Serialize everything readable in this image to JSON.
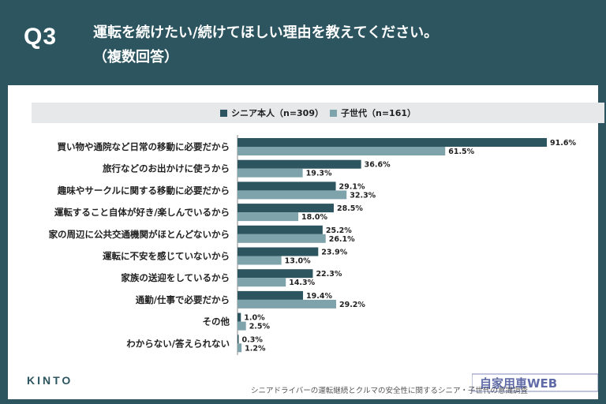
{
  "header": {
    "q_label": "Q3",
    "title_line1": "運転を続けたい/続けてほしい理由を教えてください。",
    "title_line2": "（複数回答）"
  },
  "chart_data": {
    "type": "bar",
    "orientation": "horizontal",
    "categories": [
      "買い物や通院など日常の移動に必要だから",
      "旅行などのお出かけに使うから",
      "趣味やサークルに関する移動に必要だから",
      "運転すること自体が好き/楽しんでいるから",
      "家の周辺に公共交通機関がほとんどないから",
      "運転に不安を感じていないから",
      "家族の送迎をしているから",
      "通勤/仕事で必要だから",
      "その他",
      "わからない/答えられない"
    ],
    "series": [
      {
        "name": "シニア本人（n=309）",
        "color": "#2c5560",
        "values": [
          91.6,
          36.6,
          29.1,
          28.5,
          25.2,
          23.9,
          22.3,
          19.4,
          1.0,
          0.3
        ],
        "labels": [
          "91.6%",
          "36.6%",
          "29.1%",
          "28.5%",
          "25.2%",
          "23.9%",
          "22.3%",
          "19.4%",
          "1.0%",
          "0.3%"
        ]
      },
      {
        "name": "子世代（n=161）",
        "color": "#7fa3ab",
        "values": [
          61.5,
          19.3,
          32.3,
          18.0,
          26.1,
          13.0,
          14.3,
          29.2,
          2.5,
          1.2
        ],
        "labels": [
          "61.5%",
          "19.3%",
          "32.3%",
          "18.0%",
          "26.1%",
          "13.0%",
          "14.3%",
          "29.2%",
          "2.5%",
          "1.2%"
        ]
      }
    ],
    "xlim": [
      0,
      100
    ],
    "legend_position": "top"
  },
  "footer": {
    "logo": "KINTO",
    "source": "シニアドライバーの運転継続とクルマの安全性に関するシニア・子世代の意識調査",
    "watermark": "自家用車WEB"
  }
}
